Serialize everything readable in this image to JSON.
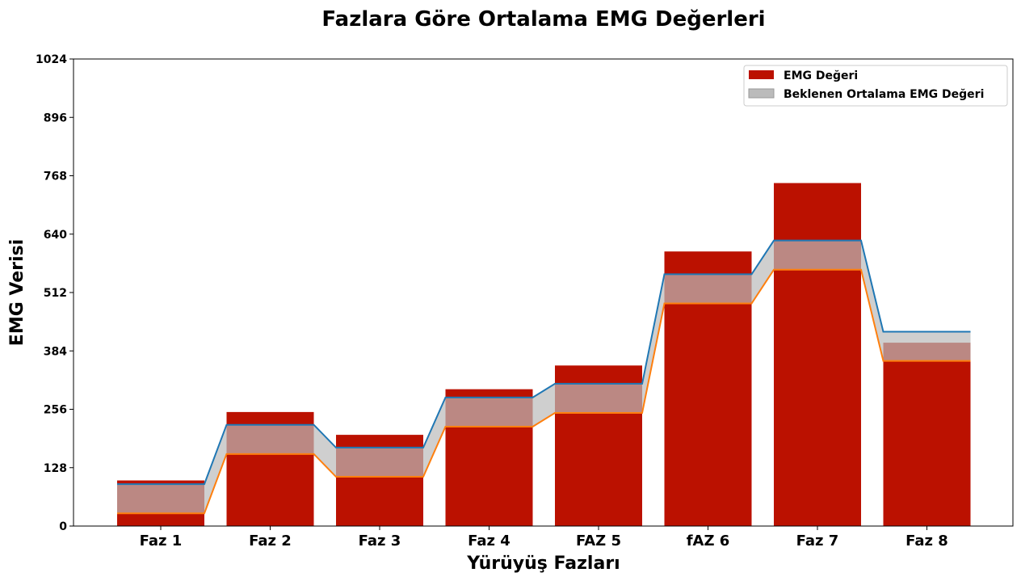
{
  "chart_data": {
    "type": "bar",
    "title": "Fazlara Göre Ortalama EMG Değerleri",
    "xlabel": "Yürüyüş Fazları",
    "ylabel": "EMG Verisi",
    "categories": [
      "Faz 1",
      "Faz 2",
      "Faz 3",
      "Faz 4",
      "FAZ 5",
      "fAZ 6",
      "Faz 7",
      "Faz 8"
    ],
    "ylim": [
      0,
      1024
    ],
    "yticks": [
      0,
      128,
      256,
      384,
      512,
      640,
      768,
      896,
      1024
    ],
    "series": [
      {
        "name": "EMG Değeri",
        "values": [
          100,
          250,
          200,
          300,
          352,
          602,
          752,
          402
        ],
        "color": "#bb1100"
      }
    ],
    "expected_band": {
      "name": "Beklenen Ortalama EMG Değeri",
      "upper": [
        92,
        222,
        172,
        282,
        312,
        552,
        626,
        426
      ],
      "lower": [
        28,
        158,
        108,
        218,
        248,
        488,
        562,
        362
      ],
      "fill_color": "#bbbbbb",
      "upper_line_color": "#1f77b4",
      "lower_line_color": "#ff7f0e"
    },
    "legend": {
      "position": "top-right"
    },
    "grid": false
  }
}
